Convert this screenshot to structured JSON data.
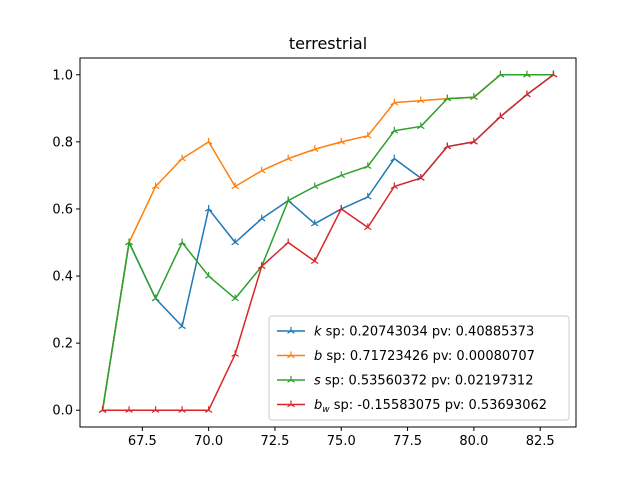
{
  "chart_data": {
    "type": "line",
    "title": "terrestrial",
    "xlabel": "",
    "ylabel": "",
    "xlim": [
      65.15,
      83.85
    ],
    "ylim": [
      -0.05,
      1.05
    ],
    "xticks": [
      67.5,
      70.0,
      72.5,
      75.0,
      77.5,
      80.0,
      82.5
    ],
    "xtick_labels": [
      "67.5",
      "70.0",
      "72.5",
      "75.0",
      "77.5",
      "80.0",
      "82.5"
    ],
    "yticks": [
      0.0,
      0.2,
      0.4,
      0.6,
      0.8,
      1.0
    ],
    "ytick_labels": [
      "0.0",
      "0.2",
      "0.4",
      "0.6",
      "0.8",
      "1.0"
    ],
    "grid": false,
    "legend_position": "lower-right",
    "x": [
      66,
      67,
      68,
      69,
      70,
      71,
      72,
      73,
      74,
      75,
      76,
      77,
      78,
      79,
      80,
      81,
      82,
      83
    ],
    "series": [
      {
        "symbol": "k",
        "subscript": "",
        "legend_rest": " sp: 0.20743034 pv: 0.40885373",
        "color": "#1f77b4",
        "values": [
          0.0,
          0.5,
          0.333,
          0.25,
          0.6,
          0.5,
          0.571,
          0.625,
          0.556,
          0.6,
          0.636,
          0.75,
          0.692,
          0.786,
          0.8,
          0.875,
          0.941,
          1.0
        ]
      },
      {
        "symbol": "b",
        "subscript": "",
        "legend_rest": " sp: 0.71723426 pv: 0.00080707",
        "color": "#ff7f0e",
        "values": [
          0.0,
          0.5,
          0.667,
          0.75,
          0.8,
          0.667,
          0.714,
          0.75,
          0.778,
          0.8,
          0.818,
          0.917,
          0.923,
          0.929,
          0.933,
          1.0,
          1.0,
          1.0
        ]
      },
      {
        "symbol": "s",
        "subscript": "",
        "legend_rest": " sp: 0.53560372 pv: 0.02197312",
        "color": "#2ca02c",
        "values": [
          0.0,
          0.5,
          0.333,
          0.5,
          0.4,
          0.333,
          0.429,
          0.625,
          0.667,
          0.7,
          0.727,
          0.833,
          0.846,
          0.929,
          0.933,
          1.0,
          1.0,
          1.0
        ]
      },
      {
        "symbol": "b",
        "subscript": "w",
        "legend_rest": " sp: -0.15583075 pv: 0.53693062",
        "color": "#d62728",
        "values": [
          0.0,
          0.0,
          0.0,
          0.0,
          0.0,
          0.167,
          0.429,
          0.5,
          0.444,
          0.6,
          0.545,
          0.667,
          0.692,
          0.786,
          0.8,
          0.875,
          0.941,
          1.0
        ]
      }
    ]
  }
}
